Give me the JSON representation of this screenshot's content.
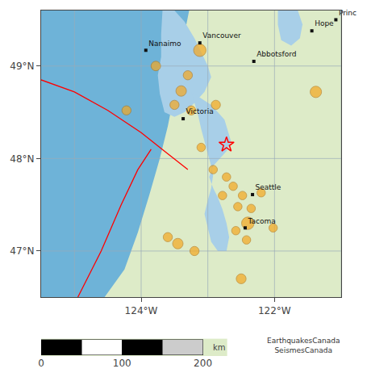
{
  "chart_data": [
    {
      "type": "scatter",
      "color": "#ddebc8",
      "xlim": [
        -125.5,
        -121.0
      ],
      "ylim": [
        46.5,
        49.6
      ],
      "xticks": [
        {
          "value": -124.0,
          "label": "124°W"
        },
        {
          "value": -122.0,
          "label": "122°W"
        }
      ],
      "yticks": [
        {
          "value": 47.0,
          "label": "47°N"
        },
        {
          "value": 48.0,
          "label": "48°N"
        },
        {
          "value": 49.0,
          "label": "49°N"
        }
      ],
      "grid": true,
      "grid_x": [
        -125,
        -124,
        -123,
        -122,
        -121
      ],
      "grid_y": [
        47,
        48,
        49
      ],
      "series": [
        {
          "type": "area",
          "color": "#6eb3d8",
          "x": [
            -125.5,
            -124.55,
            -124.25,
            -124.05,
            -123.88,
            -123.72,
            -123.6,
            -123.5,
            -123.42,
            -123.35,
            -123.28,
            -125.5
          ],
          "y": [
            46.5,
            46.5,
            46.8,
            47.2,
            47.6,
            48.0,
            48.35,
            48.7,
            49.0,
            49.35,
            49.6,
            49.6
          ]
        },
        {
          "type": "area",
          "color": "#a8cfe8",
          "x": [
            -123.65,
            -123.5,
            -123.35,
            -123.2,
            -123.1,
            -123.0,
            -122.95,
            -123.05,
            -123.2,
            -123.35,
            -123.5,
            -123.65,
            -123.72,
            -123.75,
            -123.7,
            -123.7,
            -123.68
          ],
          "y": [
            49.6,
            49.6,
            49.48,
            49.3,
            49.15,
            49.0,
            48.88,
            48.72,
            48.6,
            48.5,
            48.45,
            48.5,
            48.7,
            48.9,
            49.1,
            49.35,
            49.6
          ]
        },
        {
          "type": "area",
          "color": "#a8cfe8",
          "x": [
            -123.25,
            -123.1,
            -122.95,
            -122.85,
            -122.75,
            -122.7,
            -122.65,
            -122.72,
            -122.82,
            -122.92,
            -122.98,
            -122.92,
            -122.85,
            -122.78,
            -122.72,
            -122.68,
            -122.72,
            -122.85,
            -122.95,
            -123.0,
            -123.05,
            -123.0,
            -122.95,
            -122.92,
            -122.95,
            -123.0,
            -123.05,
            -123.1,
            -123.15,
            -123.2,
            -123.25
          ],
          "y": [
            48.72,
            48.65,
            48.58,
            48.5,
            48.42,
            48.3,
            48.18,
            48.08,
            48.0,
            47.92,
            47.8,
            47.68,
            47.58,
            47.45,
            47.3,
            47.15,
            47.0,
            47.0,
            47.1,
            47.25,
            47.4,
            47.55,
            47.68,
            47.82,
            47.92,
            48.05,
            48.18,
            48.32,
            48.48,
            48.6,
            48.72
          ]
        },
        {
          "type": "area",
          "color": "#a8cfe8",
          "x": [
            -121.95,
            -121.65,
            -121.58,
            -121.62,
            -121.75,
            -121.9,
            -121.95,
            -121.95
          ],
          "y": [
            49.6,
            49.6,
            49.45,
            49.3,
            49.22,
            49.28,
            49.45,
            49.6
          ]
        },
        {
          "type": "line",
          "color": "red",
          "x": [
            -125.5,
            -125.0,
            -124.5,
            -124.0,
            -123.65,
            -123.3
          ],
          "y": [
            48.85,
            48.72,
            48.52,
            48.28,
            48.08,
            47.88
          ]
        },
        {
          "type": "line",
          "color": "red",
          "x": [
            -124.95,
            -124.6,
            -124.3,
            -124.05,
            -123.85
          ],
          "y": [
            46.5,
            47.0,
            47.5,
            47.88,
            48.1
          ]
        },
        {
          "type": "scatter",
          "marker": "circle",
          "color": "#f5a820",
          "x": [
            -123.78,
            -123.12,
            -123.3,
            -123.4,
            -123.5,
            -123.25,
            -122.88,
            -124.22,
            -121.38,
            -123.1,
            -122.92,
            -122.72,
            -122.62,
            -122.78,
            -122.48,
            -122.55,
            -122.35,
            -122.4,
            -122.58,
            -122.2,
            -123.6,
            -123.45,
            -123.2,
            -122.42,
            -122.02,
            -122.5
          ],
          "y": [
            49.0,
            49.17,
            48.9,
            48.73,
            48.58,
            48.52,
            48.58,
            48.52,
            48.72,
            48.12,
            47.88,
            47.8,
            47.7,
            47.6,
            47.6,
            47.48,
            47.46,
            47.3,
            47.22,
            47.63,
            47.15,
            47.08,
            47.0,
            47.12,
            47.25,
            46.7
          ],
          "sizes": [
            70,
            120,
            65,
            85,
            65,
            65,
            65,
            65,
            100,
            55,
            55,
            55,
            55,
            55,
            55,
            55,
            55,
            120,
            55,
            55,
            65,
            85,
            65,
            55,
            55,
            75
          ]
        },
        {
          "type": "scatter",
          "marker": "star-open",
          "color": "red",
          "x": [
            -122.72
          ],
          "y": [
            48.15
          ]
        },
        {
          "type": "scatter",
          "marker": "square",
          "color": "#111111",
          "x": [
            -123.12,
            -123.93,
            -123.37,
            -122.31,
            -121.44,
            -122.33,
            -122.44,
            -121.08
          ],
          "y": [
            49.25,
            49.17,
            48.43,
            49.05,
            49.38,
            47.61,
            47.25,
            49.5
          ],
          "text": [
            "Vancouver",
            "Nanaimo",
            "Victoria",
            "Abbotsford",
            "Hope",
            "Seattle",
            "Tacoma",
            "Princ"
          ]
        }
      ],
      "annotations": [
        {
          "text": "EarthquakesCanada\nSeismesCanada"
        }
      ]
    },
    {
      "type": "bar",
      "orientation": "horizontal",
      "stacked": true,
      "tick_labels": "x",
      "categories": [
        null
      ],
      "xlim": [
        0,
        230
      ],
      "xticks": [
        0,
        100,
        200
      ],
      "xlabel": "km",
      "series": [
        {
          "color": "black",
          "values": [
            50
          ]
        },
        {
          "color": "white",
          "values": [
            50
          ]
        },
        {
          "color": "black",
          "values": [
            50
          ]
        },
        {
          "color": "#cccccc",
          "values": [
            50
          ]
        }
      ]
    }
  ]
}
